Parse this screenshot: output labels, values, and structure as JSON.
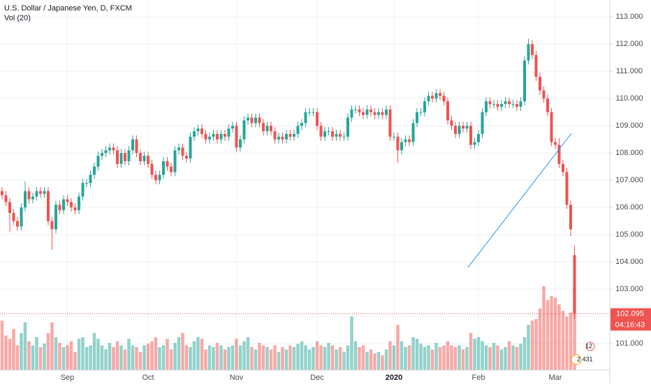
{
  "chart_data": {
    "type": "candlestick",
    "title": "U.S. Dollar / Japanese Yen, D, FXCM",
    "volume_title": "Vol (20)",
    "countdown": "04:16:43",
    "badges": [
      "12",
      "2 431"
    ],
    "up_color": "#26a69a",
    "down_color": "#ef5350",
    "categories": [
      null,
      null,
      null,
      null,
      null,
      null,
      null,
      null,
      null,
      null,
      null,
      null,
      null,
      null,
      null,
      null,
      null,
      "Sep",
      null,
      null,
      null,
      null,
      null,
      null,
      null,
      null,
      null,
      null,
      null,
      null,
      null,
      null,
      null,
      null,
      null,
      null,
      null,
      null,
      "Oct",
      null,
      null,
      null,
      null,
      null,
      null,
      null,
      null,
      null,
      null,
      null,
      null,
      null,
      null,
      null,
      null,
      null,
      null,
      null,
      null,
      null,
      null,
      "Nov",
      null,
      null,
      null,
      null,
      null,
      null,
      null,
      null,
      null,
      null,
      null,
      null,
      null,
      null,
      null,
      null,
      null,
      null,
      null,
      null,
      "Dec",
      null,
      null,
      null,
      null,
      null,
      null,
      null,
      null,
      null,
      null,
      null,
      null,
      null,
      null,
      null,
      null,
      null,
      null,
      null,
      "2020",
      null,
      null,
      null,
      null,
      null,
      null,
      null,
      null,
      null,
      null,
      null,
      null,
      null,
      null,
      null,
      null,
      null,
      null,
      null,
      null,
      null,
      "Feb",
      null,
      null,
      null,
      null,
      null,
      null,
      null,
      null,
      null,
      null,
      null,
      null,
      null,
      null,
      null,
      null,
      null,
      null,
      null,
      "Mar",
      null,
      null,
      null,
      null,
      null
    ],
    "open": [
      106.6,
      106.45,
      106.2,
      105.8,
      105.5,
      105.3,
      106.0,
      106.6,
      106.3,
      106.4,
      106.6,
      106.5,
      106.6,
      105.5,
      105.2,
      106.1,
      105.9,
      106.3,
      106.2,
      106.0,
      105.9,
      106.4,
      106.9,
      106.9,
      107.2,
      107.5,
      107.9,
      108.0,
      108.1,
      108.2,
      108.1,
      107.6,
      108.0,
      107.7,
      108.1,
      108.5,
      108.0,
      107.7,
      107.9,
      107.6,
      107.2,
      107.0,
      107.2,
      107.7,
      107.5,
      107.3,
      108.1,
      108.2,
      107.9,
      107.8,
      108.6,
      108.8,
      108.9,
      108.7,
      108.5,
      108.6,
      108.7,
      108.5,
      108.7,
      108.6,
      108.9,
      109.0,
      108.2,
      108.5,
      109.2,
      109.3,
      109.1,
      109.3,
      109.1,
      108.8,
      109.0,
      108.8,
      108.5,
      108.6,
      108.5,
      108.7,
      108.6,
      108.7,
      109.0,
      109.1,
      109.5,
      109.5,
      109.5,
      109.0,
      108.6,
      108.8,
      108.8,
      108.6,
      108.7,
      108.6,
      108.6,
      109.3,
      109.6,
      109.6,
      109.5,
      109.4,
      109.6,
      109.5,
      109.4,
      109.5,
      109.4,
      109.6,
      108.6,
      108.6,
      108.1,
      108.4,
      108.5,
      108.4,
      109.1,
      109.5,
      109.5,
      109.9,
      110.1,
      110.0,
      110.2,
      110.1,
      109.9,
      109.2,
      109.0,
      108.7,
      109.0,
      108.9,
      109.0,
      108.3,
      108.4,
      108.7,
      109.5,
      109.9,
      109.8,
      109.8,
      109.7,
      109.8,
      109.9,
      109.8,
      109.8,
      109.7,
      109.9,
      111.4,
      112.0,
      111.6,
      110.8,
      110.3,
      110.0,
      109.5,
      108.4,
      108.3,
      107.6,
      107.3,
      106.1,
      104.25
    ],
    "high": [
      106.75,
      106.6,
      106.35,
      105.95,
      105.65,
      106.15,
      106.95,
      106.75,
      106.55,
      106.75,
      106.75,
      106.75,
      106.75,
      105.65,
      106.25,
      106.25,
      106.45,
      106.45,
      106.35,
      106.15,
      106.55,
      107.05,
      107.05,
      107.35,
      107.65,
      108.05,
      108.15,
      108.25,
      108.35,
      108.35,
      108.25,
      108.15,
      108.15,
      108.25,
      108.65,
      108.65,
      108.15,
      108.05,
      108.05,
      107.75,
      107.35,
      107.35,
      107.85,
      107.85,
      107.65,
      108.25,
      108.35,
      108.35,
      108.05,
      108.75,
      108.95,
      109.05,
      109.05,
      108.85,
      108.75,
      108.85,
      108.85,
      108.85,
      108.85,
      109.05,
      109.15,
      109.15,
      108.65,
      109.35,
      109.45,
      109.45,
      109.45,
      109.45,
      109.25,
      109.15,
      109.15,
      108.95,
      108.75,
      108.75,
      108.85,
      108.85,
      108.85,
      109.15,
      109.25,
      109.65,
      109.65,
      109.65,
      109.65,
      109.15,
      108.95,
      108.95,
      108.95,
      108.85,
      108.85,
      108.75,
      109.45,
      109.75,
      109.75,
      109.75,
      109.65,
      109.75,
      109.75,
      109.65,
      109.65,
      109.65,
      109.75,
      109.75,
      108.75,
      108.75,
      108.55,
      108.65,
      108.65,
      109.25,
      109.65,
      109.65,
      110.05,
      110.25,
      110.25,
      110.35,
      110.35,
      110.25,
      110.05,
      109.35,
      109.15,
      109.15,
      109.15,
      109.15,
      109.15,
      108.55,
      108.85,
      109.65,
      110.05,
      110.05,
      109.95,
      109.95,
      109.95,
      110.05,
      110.05,
      109.95,
      109.95,
      110.05,
      111.55,
      112.2,
      112.15,
      111.75,
      110.95,
      110.45,
      110.15,
      109.65,
      108.55,
      108.55,
      107.75,
      107.45,
      106.25,
      104.6
    ],
    "low": [
      106.3,
      106.05,
      105.1,
      105.35,
      105.15,
      105.15,
      105.85,
      106.15,
      106.15,
      106.25,
      106.35,
      106.35,
      105.35,
      104.45,
      105.05,
      105.75,
      105.75,
      106.05,
      105.85,
      105.75,
      105.75,
      106.25,
      106.75,
      106.75,
      107.05,
      107.35,
      107.75,
      107.85,
      107.95,
      107.95,
      107.45,
      107.45,
      107.55,
      107.55,
      107.95,
      107.85,
      107.55,
      107.55,
      107.45,
      107.05,
      106.85,
      106.85,
      107.05,
      107.35,
      107.15,
      107.15,
      107.95,
      107.75,
      107.65,
      107.65,
      108.45,
      108.65,
      108.55,
      108.35,
      108.35,
      108.45,
      108.35,
      108.35,
      108.45,
      108.45,
      108.75,
      108.05,
      108.05,
      108.35,
      109.05,
      108.95,
      108.95,
      108.95,
      108.65,
      108.65,
      108.65,
      108.35,
      108.35,
      108.35,
      108.35,
      108.45,
      108.45,
      108.55,
      108.85,
      108.95,
      109.35,
      109.35,
      108.85,
      108.45,
      108.45,
      108.65,
      108.45,
      108.45,
      108.45,
      108.45,
      108.45,
      109.15,
      109.45,
      109.35,
      109.25,
      109.25,
      109.35,
      109.25,
      109.25,
      109.25,
      109.25,
      108.45,
      108.45,
      107.65,
      107.95,
      108.25,
      108.25,
      108.25,
      108.95,
      109.35,
      109.35,
      109.75,
      109.85,
      109.85,
      109.95,
      109.75,
      109.05,
      108.85,
      108.55,
      108.55,
      108.75,
      108.75,
      108.15,
      108.15,
      108.25,
      108.55,
      109.35,
      109.65,
      109.65,
      109.55,
      109.55,
      109.65,
      109.65,
      109.65,
      109.55,
      109.55,
      109.75,
      111.25,
      111.45,
      110.65,
      110.15,
      109.85,
      109.35,
      108.25,
      108.15,
      107.45,
      107.15,
      105.95,
      104.95,
      101.9
    ],
    "close": [
      106.45,
      106.2,
      105.8,
      105.5,
      105.3,
      106.0,
      106.6,
      106.3,
      106.4,
      106.6,
      106.5,
      106.6,
      105.5,
      105.2,
      106.1,
      105.9,
      106.3,
      106.2,
      106.0,
      105.9,
      106.4,
      106.9,
      106.9,
      107.2,
      107.5,
      107.9,
      108.0,
      108.1,
      108.2,
      108.1,
      107.6,
      108.0,
      107.7,
      108.1,
      108.5,
      108.0,
      107.7,
      107.9,
      107.6,
      107.2,
      107.0,
      107.2,
      107.7,
      107.5,
      107.3,
      108.1,
      108.2,
      107.9,
      107.8,
      108.6,
      108.8,
      108.9,
      108.7,
      108.5,
      108.6,
      108.7,
      108.5,
      108.7,
      108.6,
      108.9,
      109.0,
      108.2,
      108.5,
      109.2,
      109.3,
      109.1,
      109.3,
      109.1,
      108.8,
      109.0,
      108.8,
      108.5,
      108.6,
      108.5,
      108.7,
      108.6,
      108.7,
      109.0,
      109.1,
      109.5,
      109.5,
      109.5,
      109.0,
      108.6,
      108.8,
      108.8,
      108.6,
      108.7,
      108.6,
      108.6,
      109.3,
      109.6,
      109.6,
      109.5,
      109.4,
      109.6,
      109.5,
      109.4,
      109.5,
      109.4,
      109.6,
      108.6,
      108.6,
      108.1,
      108.4,
      108.5,
      108.4,
      109.1,
      109.5,
      109.5,
      109.9,
      110.1,
      110.0,
      110.2,
      110.1,
      109.9,
      109.2,
      109.0,
      108.7,
      109.0,
      108.9,
      109.0,
      108.3,
      108.4,
      108.7,
      109.5,
      109.9,
      109.8,
      109.8,
      109.7,
      109.8,
      109.9,
      109.8,
      109.8,
      109.7,
      109.9,
      111.4,
      112.0,
      111.6,
      110.8,
      110.3,
      110.0,
      109.5,
      108.4,
      108.3,
      107.6,
      107.3,
      106.1,
      105.2,
      102.095
    ],
    "volume": [
      60,
      42,
      38,
      50,
      30,
      45,
      58,
      35,
      30,
      40,
      28,
      32,
      45,
      58,
      40,
      33,
      28,
      30,
      35,
      22,
      38,
      40,
      28,
      30,
      45,
      38,
      30,
      25,
      33,
      28,
      35,
      30,
      25,
      38,
      30,
      28,
      22,
      30,
      32,
      35,
      40,
      28,
      30,
      38,
      25,
      33,
      40,
      45,
      30,
      28,
      35,
      40,
      38,
      25,
      30,
      28,
      33,
      30,
      25,
      28,
      30,
      38,
      30,
      35,
      40,
      28,
      25,
      33,
      30,
      28,
      25,
      30,
      22,
      28,
      25,
      30,
      28,
      32,
      35,
      30,
      25,
      28,
      35,
      30,
      28,
      33,
      30,
      25,
      28,
      22,
      30,
      65,
      35,
      28,
      30,
      22,
      25,
      20,
      22,
      18,
      25,
      35,
      30,
      55,
      35,
      28,
      30,
      40,
      38,
      32,
      28,
      30,
      25,
      33,
      28,
      30,
      35,
      30,
      28,
      30,
      25,
      28,
      45,
      38,
      40,
      35,
      30,
      28,
      33,
      30,
      25,
      28,
      35,
      30,
      28,
      32,
      40,
      55,
      60,
      62,
      75,
      102,
      85,
      90,
      88,
      80,
      72,
      65,
      70,
      100
    ],
    "ylim": [
      100.03,
      113.62
    ],
    "y2lim": [
      0,
      450
    ],
    "yticks": [
      {
        "value": 101,
        "label": "101.000"
      },
      {
        "value": 102,
        "label": "102.000"
      },
      {
        "value": 103,
        "label": "103.000"
      },
      {
        "value": 104,
        "label": "104.000"
      },
      {
        "value": 105,
        "label": "105.000"
      },
      {
        "value": 106,
        "label": "106.000"
      },
      {
        "value": 107,
        "label": "107.000"
      },
      {
        "value": 108,
        "label": "108.000"
      },
      {
        "value": 109,
        "label": "109.000"
      },
      {
        "value": 110,
        "label": "110.000"
      },
      {
        "value": 111,
        "label": "111.000"
      },
      {
        "value": 112,
        "label": "112.000"
      },
      {
        "value": 113,
        "label": "113.000"
      }
    ],
    "grid": true
  }
}
